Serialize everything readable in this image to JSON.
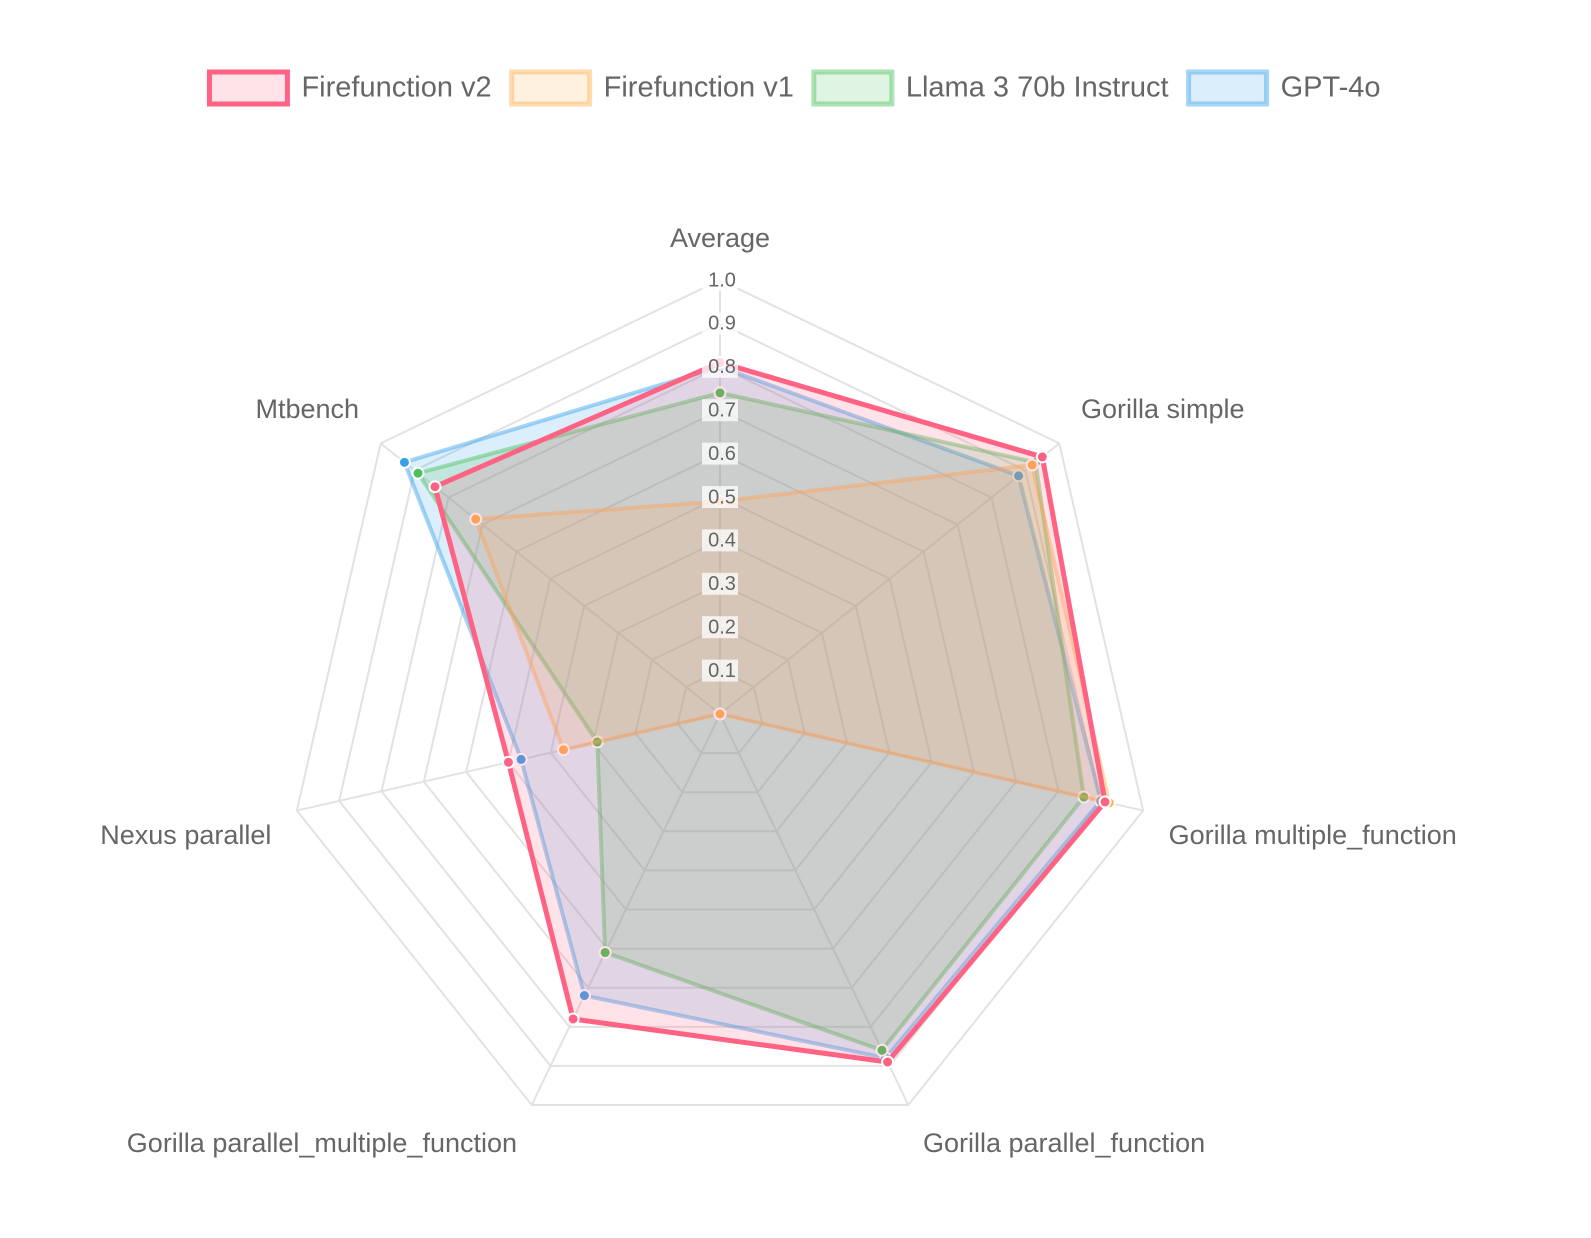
{
  "chart_data": {
    "type": "radar",
    "categories": [
      "Average",
      "Gorilla simple",
      "Gorilla multiple_function",
      "Gorilla parallel_function",
      "Gorilla parallel_multiple_function",
      "Nexus parallel",
      "Mtbench"
    ],
    "series": [
      {
        "name": "Firefunction v2",
        "color": "#ff6384",
        "values": [
          0.81,
          0.95,
          0.91,
          0.89,
          0.78,
          0.5,
          0.84
        ]
      },
      {
        "name": "Firefunction v1",
        "color": "#ffb050",
        "values": [
          0.49,
          0.92,
          0.92,
          0,
          0,
          0.37,
          0.72
        ]
      },
      {
        "name": "Llama 3 70b Instruct",
        "color": "#4bc05c",
        "values": [
          0.74,
          0.93,
          0.86,
          0.86,
          0.61,
          0.29,
          0.89
        ]
      },
      {
        "name": "GPT-4o",
        "color": "#36a2eb",
        "values": [
          0.8,
          0.88,
          0.9,
          0.88,
          0.72,
          0.47,
          0.93
        ]
      }
    ],
    "rlim": [
      0,
      1
    ],
    "rticks": [
      0.1,
      0.2,
      0.3,
      0.4,
      0.5,
      0.6,
      0.7,
      0.8,
      0.9,
      {
        "value": 1,
        "label": "1.0"
      }
    ],
    "legend": "top"
  }
}
